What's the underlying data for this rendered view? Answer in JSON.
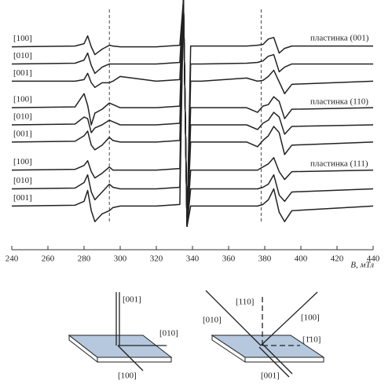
{
  "chart_data": {
    "type": "line",
    "xlabel": "B, мТл",
    "x": [
      240,
      275,
      280,
      282,
      284,
      286,
      290,
      294,
      296,
      300,
      320,
      333,
      335,
      337,
      339,
      345,
      370,
      376,
      379,
      382,
      385,
      388,
      391,
      395,
      440
    ],
    "series": [
      {
        "name": "[100]",
        "color": "#222222",
        "values": [
          260,
          261,
          264,
          274,
          260,
          250,
          257,
          262,
          261,
          260,
          260,
          262,
          320,
          30,
          261,
          261,
          261,
          262,
          263,
          270,
          272,
          252,
          258,
          261,
          261
        ]
      },
      {
        "name": "[010]",
        "color": "#222222",
        "values": [
          238,
          239,
          243,
          252,
          236,
          226,
          234,
          238,
          238,
          238,
          238,
          240,
          320,
          30,
          238,
          238,
          239,
          240,
          242,
          248,
          250,
          228,
          234,
          238,
          238
        ]
      },
      {
        "name": "[001]",
        "color": "#222222",
        "values": [
          216,
          216,
          218,
          226,
          214,
          208,
          214,
          214,
          216,
          222,
          216,
          218,
          320,
          30,
          216,
          216,
          220,
          216,
          217,
          222,
          230,
          215,
          200,
          212,
          216
        ]
      },
      {
        "name": "[100]",
        "color": "#222222",
        "values": [
          182,
          183,
          200,
          185,
          160,
          175,
          180,
          188,
          186,
          182,
          182,
          184,
          320,
          30,
          182,
          182,
          182,
          176,
          184,
          186,
          196,
          190,
          168,
          180,
          182
        ]
      },
      {
        "name": "[010]",
        "color": "#222222",
        "values": [
          160,
          161,
          170,
          168,
          150,
          156,
          160,
          166,
          164,
          160,
          160,
          162,
          320,
          30,
          160,
          160,
          160,
          154,
          162,
          166,
          176,
          170,
          148,
          158,
          160
        ]
      },
      {
        "name": "[001]",
        "color": "#222222",
        "values": [
          138,
          139,
          146,
          152,
          134,
          128,
          134,
          144,
          140,
          138,
          138,
          140,
          320,
          30,
          138,
          138,
          138,
          132,
          140,
          146,
          158,
          150,
          122,
          134,
          138
        ]
      },
      {
        "name": "[100]",
        "color": "#222222",
        "values": [
          102,
          103,
          108,
          114,
          100,
          92,
          98,
          106,
          102,
          102,
          102,
          104,
          320,
          30,
          102,
          102,
          102,
          102,
          106,
          110,
          118,
          100,
          90,
          100,
          102
        ]
      },
      {
        "name": "[010]",
        "color": "#222222",
        "values": [
          78,
          79,
          86,
          96,
          74,
          64,
          74,
          84,
          80,
          78,
          78,
          80,
          320,
          30,
          78,
          78,
          78,
          78,
          80,
          84,
          96,
          70,
          62,
          74,
          78
        ]
      },
      {
        "name": "[001]",
        "color": "#222222",
        "values": [
          56,
          57,
          62,
          76,
          50,
          36,
          46,
          50,
          54,
          56,
          56,
          58,
          320,
          30,
          56,
          56,
          56,
          56,
          58,
          64,
          78,
          48,
          36,
          50,
          56
        ]
      }
    ],
    "annotations": [
      "пластинка (001)",
      "пластинка (110)",
      "пластинка (111)"
    ],
    "reference_lines": [
      294,
      378
    ],
    "xlim": [
      240,
      440
    ],
    "ylim": [
      0,
      320
    ],
    "xticks": [
      240,
      260,
      280,
      300,
      320,
      340,
      360,
      380,
      400,
      420,
      440
    ]
  },
  "diagrams": [
    {
      "labels": [
        "[001]",
        "[010]",
        "[100]"
      ]
    },
    {
      "labels": [
        "[110]",
        "[010]",
        "[100]",
        "[1̄10]",
        "[001]"
      ]
    }
  ]
}
